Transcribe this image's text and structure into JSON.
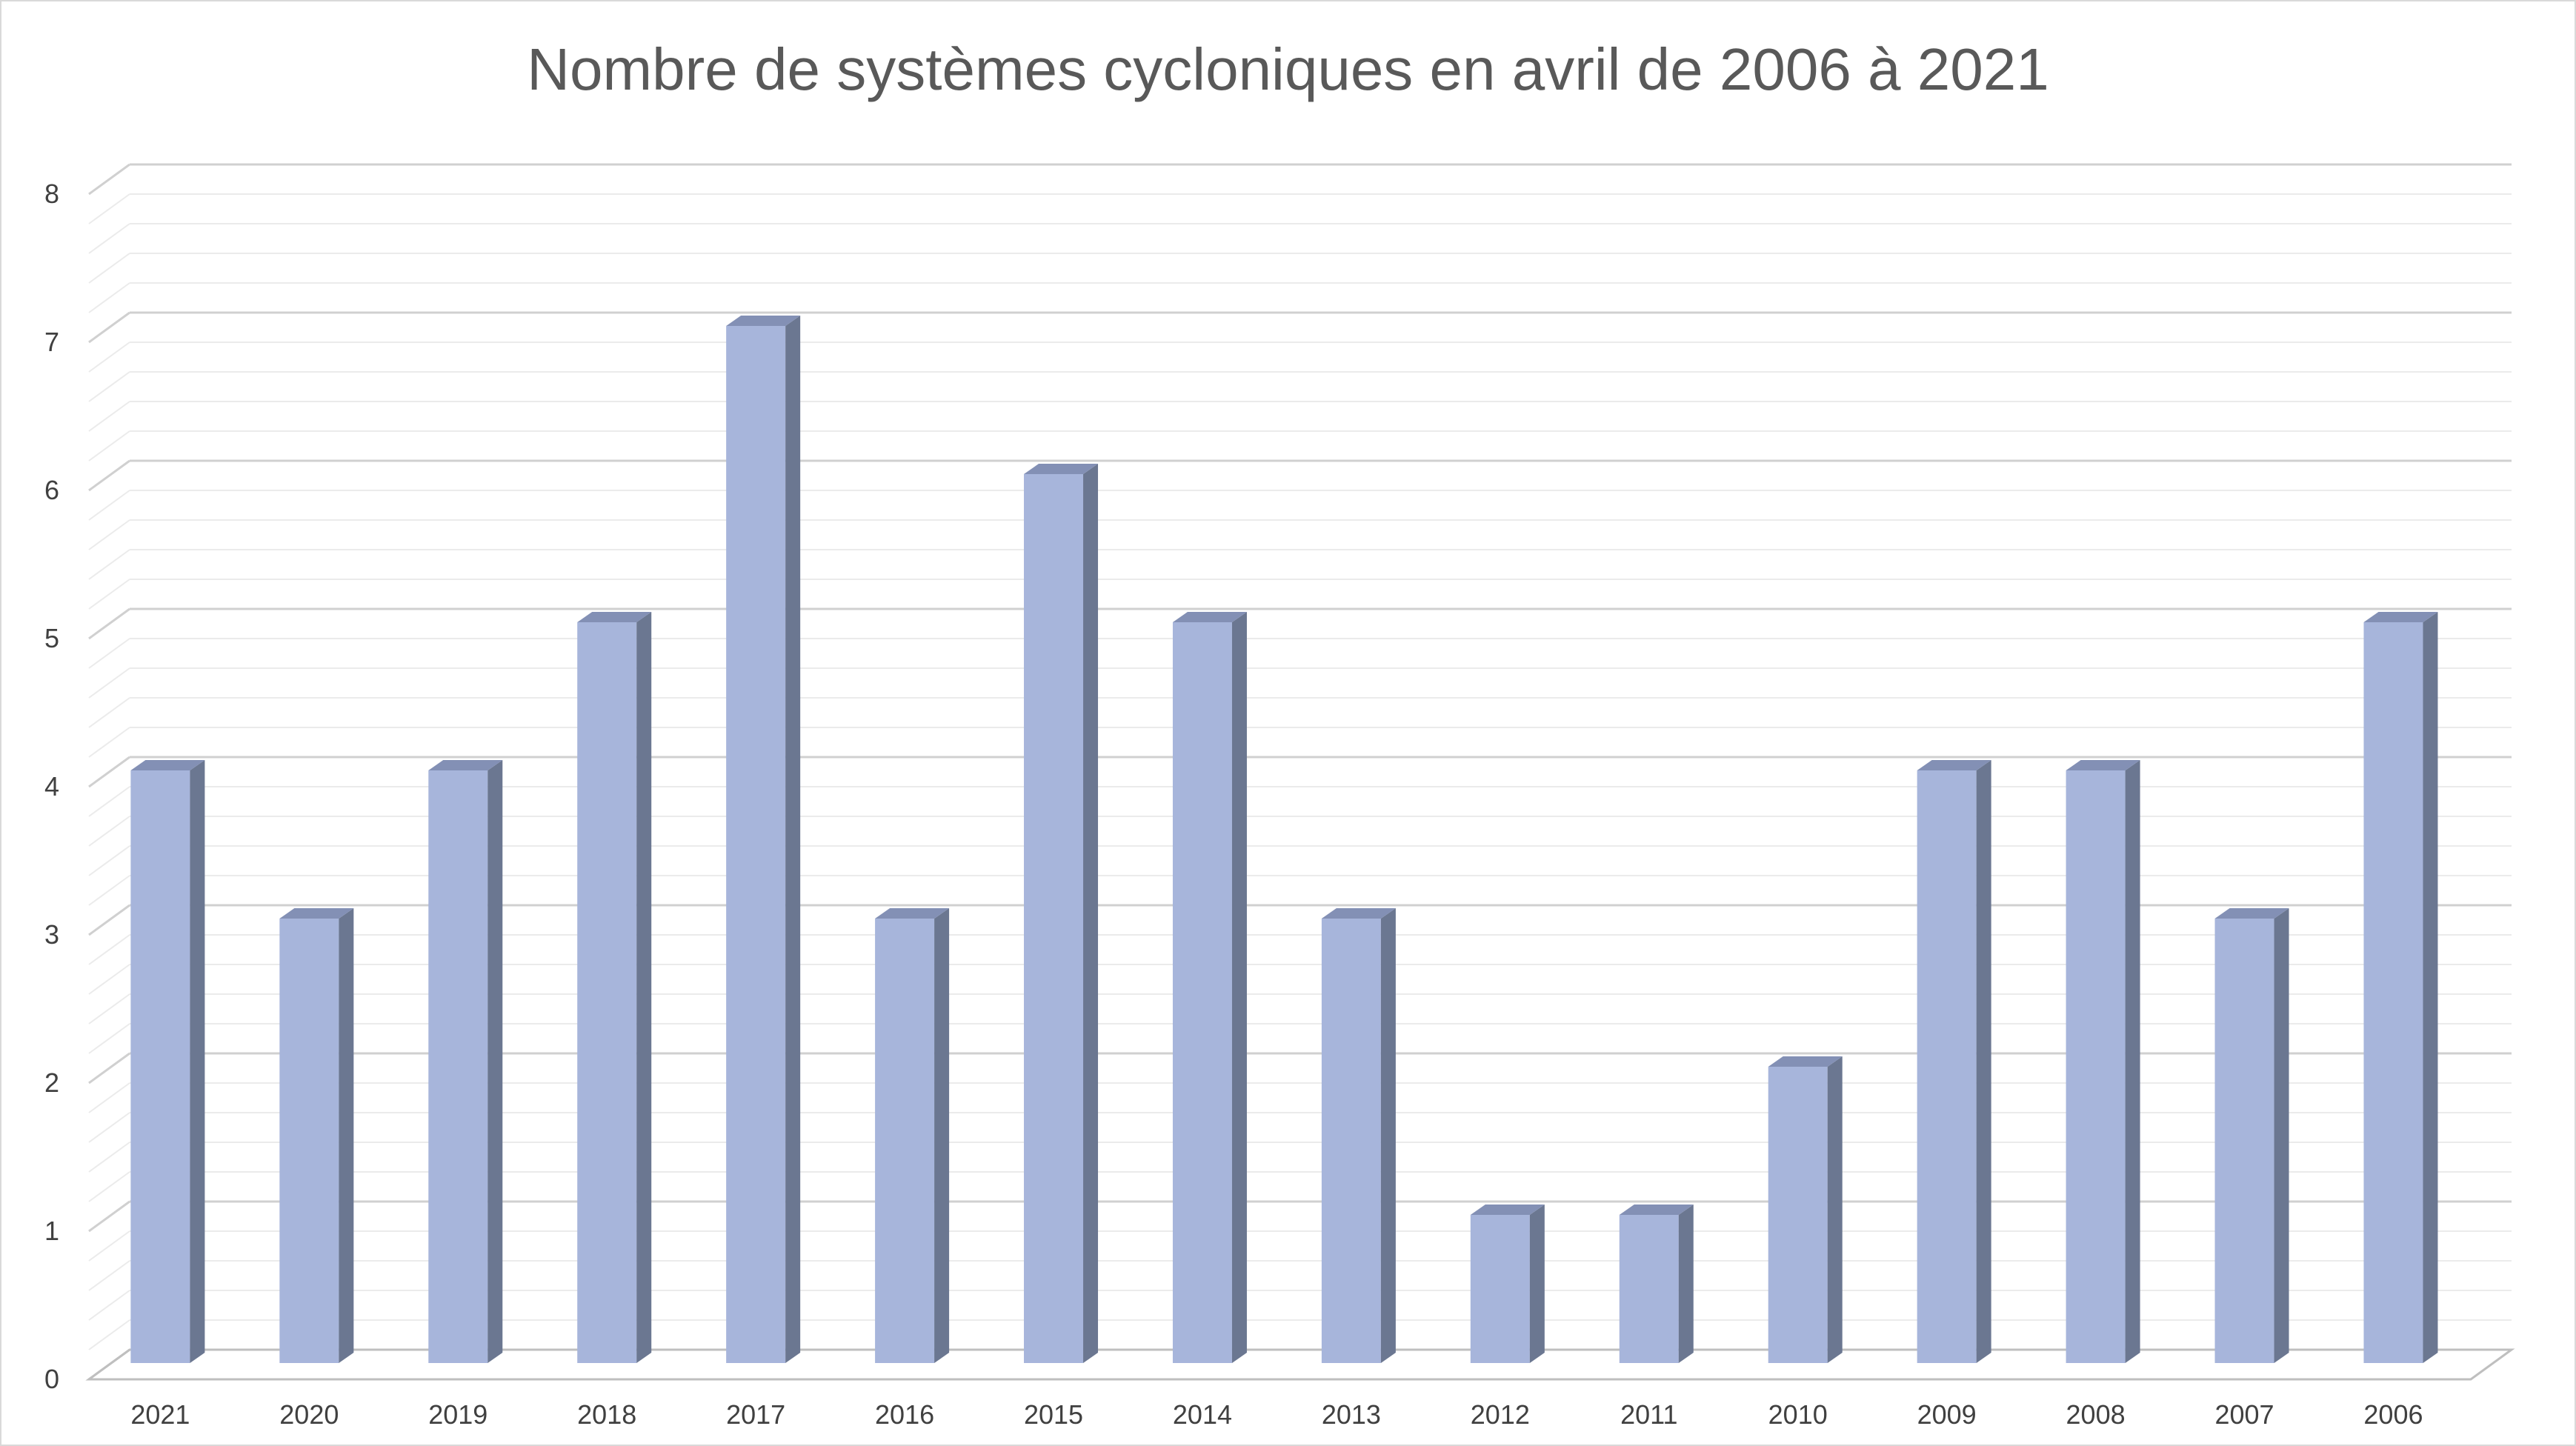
{
  "chart_data": {
    "type": "bar",
    "title": "Nombre de systèmes cycloniques en avril de 2006 à 2021",
    "xlabel": "",
    "ylabel": "",
    "ylim": [
      0,
      8
    ],
    "yticks": [
      0,
      1,
      2,
      3,
      4,
      5,
      6,
      7,
      8
    ],
    "grid": true,
    "legend": "none",
    "categories": [
      "2021",
      "2020",
      "2019",
      "2018",
      "2017",
      "2016",
      "2015",
      "2014",
      "2013",
      "2012",
      "2011",
      "2010",
      "2009",
      "2008",
      "2007",
      "2006"
    ],
    "values": [
      4,
      3,
      4,
      5,
      7,
      3,
      6,
      5,
      3,
      1,
      1,
      2,
      4,
      4,
      3,
      5
    ],
    "colors": {
      "bar_front": "#a7b5db",
      "bar_side": "#6b7791",
      "bar_top": "#8390b5",
      "grid_major": "#d0d0d0",
      "grid_minor": "#ebebeb",
      "text": "#404040"
    }
  }
}
